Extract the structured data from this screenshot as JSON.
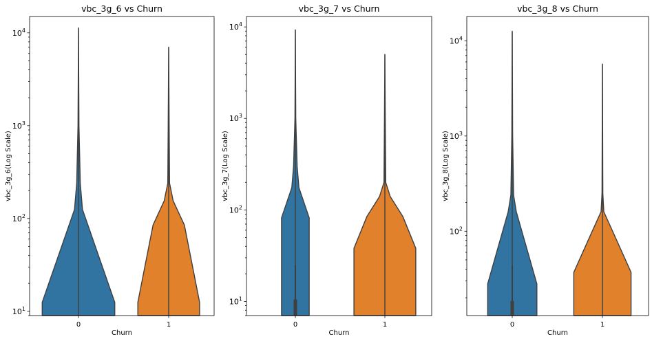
{
  "chart_data": [
    {
      "type": "violin",
      "title": "vbc_3g_6 vs Churn",
      "xlabel": "Churn",
      "ylabel": "vbc_3g_6(Log Scale)",
      "yscale": "log",
      "ylim": [
        9,
        15000
      ],
      "yticks": [
        {
          "value": 10,
          "base": "10",
          "exp": "1"
        },
        {
          "value": 100,
          "base": "10",
          "exp": "2"
        },
        {
          "value": 1000,
          "base": "10",
          "exp": "3"
        },
        {
          "value": 10000,
          "base": "10",
          "exp": "4"
        }
      ],
      "categories": [
        "0",
        "1"
      ],
      "colors": [
        "#3274a1",
        "#e1812c"
      ],
      "violins": [
        {
          "category": "0",
          "min": 9,
          "max": 11300,
          "profile": [
            [
              9,
              0.81
            ],
            [
              12.5,
              0.81
            ],
            [
              125,
              0.09
            ],
            [
              240,
              0.04
            ],
            [
              1000,
              0.01
            ],
            [
              11300,
              0.0
            ]
          ],
          "box": null
        },
        {
          "category": "1",
          "min": 9,
          "max": 7000,
          "profile": [
            [
              9,
              0.69
            ],
            [
              12.5,
              0.69
            ],
            [
              85,
              0.35
            ],
            [
              155,
              0.1
            ],
            [
              240,
              0.02
            ],
            [
              1000,
              0.01
            ],
            [
              7000,
              0.0
            ]
          ],
          "box": null
        }
      ]
    },
    {
      "type": "violin",
      "title": "vbc_3g_7 vs Churn",
      "xlabel": "Churn",
      "ylabel": "vbc_3g_7(Log Scale)",
      "yscale": "log",
      "ylim": [
        7,
        13000
      ],
      "yticks": [
        {
          "value": 10,
          "base": "10",
          "exp": "1"
        },
        {
          "value": 100,
          "base": "10",
          "exp": "2"
        },
        {
          "value": 1000,
          "base": "10",
          "exp": "3"
        },
        {
          "value": 10000,
          "base": "10",
          "exp": "4"
        }
      ],
      "categories": [
        "0",
        "1"
      ],
      "colors": [
        "#3274a1",
        "#e1812c"
      ],
      "violins": [
        {
          "category": "0",
          "min": 7,
          "max": 9300,
          "profile": [
            [
              7,
              0.31
            ],
            [
              82,
              0.31
            ],
            [
              175,
              0.08
            ],
            [
              300,
              0.04
            ],
            [
              1000,
              0.01
            ],
            [
              9300,
              0.0
            ]
          ],
          "box": {
            "whisker_low": 7,
            "whisker_high": 25,
            "q1": 7,
            "q3": 10.5
          }
        },
        {
          "category": "1",
          "min": 7,
          "max": 5000,
          "profile": [
            [
              7,
              0.69
            ],
            [
              38,
              0.69
            ],
            [
              85,
              0.4
            ],
            [
              140,
              0.12
            ],
            [
              200,
              0.02
            ],
            [
              1000,
              0.01
            ],
            [
              5000,
              0.0
            ]
          ],
          "box": null
        }
      ]
    },
    {
      "type": "violin",
      "title": "vbc_3g_8 vs Churn",
      "xlabel": "Churn",
      "ylabel": "vbc_3g_8(Log Scale)",
      "yscale": "log",
      "ylim": [
        13,
        18000
      ],
      "yticks": [
        {
          "value": 100,
          "base": "10",
          "exp": "2"
        },
        {
          "value": 1000,
          "base": "10",
          "exp": "3"
        },
        {
          "value": 10000,
          "base": "10",
          "exp": "4"
        }
      ],
      "categories": [
        "0",
        "1"
      ],
      "colors": [
        "#3274a1",
        "#e1812c"
      ],
      "violins": [
        {
          "category": "0",
          "min": 13,
          "max": 12600,
          "profile": [
            [
              13,
              0.55
            ],
            [
              28,
              0.55
            ],
            [
              160,
              0.09
            ],
            [
              240,
              0.03
            ],
            [
              1000,
              0.01
            ],
            [
              12600,
              0.0
            ]
          ],
          "box": {
            "whisker_low": 13,
            "whisker_high": 44,
            "q1": 13,
            "q3": 18.5
          }
        },
        {
          "category": "1",
          "min": 13,
          "max": 5700,
          "profile": [
            [
              13,
              0.64
            ],
            [
              37,
              0.64
            ],
            [
              97,
              0.24
            ],
            [
              160,
              0.03
            ],
            [
              250,
              0.01
            ],
            [
              5700,
              0.0
            ]
          ],
          "box": null
        }
      ]
    }
  ]
}
